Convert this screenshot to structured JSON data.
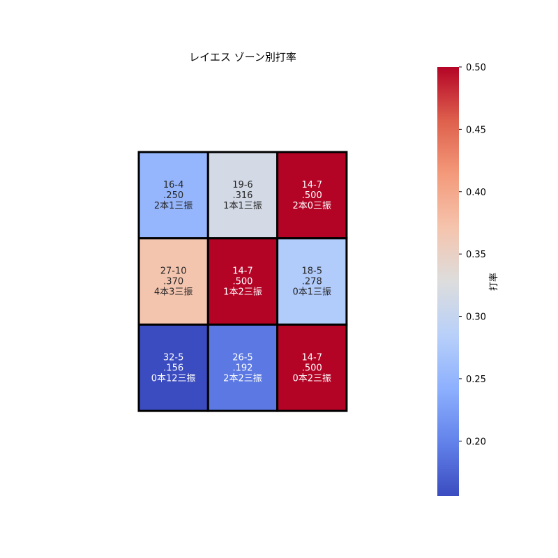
{
  "chart_data": {
    "type": "heatmap",
    "title": "レイエス ゾーン別打率",
    "rows": [
      [
        {
          "record": "16-4",
          "avg_label": ".250",
          "detail": "2本1三振",
          "value": 0.25
        },
        {
          "record": "19-6",
          "avg_label": ".316",
          "detail": "1本1三振",
          "value": 0.316
        },
        {
          "record": "14-7",
          "avg_label": ".500",
          "detail": "2本0三振",
          "value": 0.5
        }
      ],
      [
        {
          "record": "27-10",
          "avg_label": ".370",
          "detail": "4本3三振",
          "value": 0.37
        },
        {
          "record": "14-7",
          "avg_label": ".500",
          "detail": "1本2三振",
          "value": 0.5
        },
        {
          "record": "18-5",
          "avg_label": ".278",
          "detail": "0本1三振",
          "value": 0.278
        }
      ],
      [
        {
          "record": "32-5",
          "avg_label": ".156",
          "detail": "0本12三振",
          "value": 0.156
        },
        {
          "record": "26-5",
          "avg_label": ".192",
          "detail": "2本2三振",
          "value": 0.192
        },
        {
          "record": "14-7",
          "avg_label": ".500",
          "detail": "0本2三振",
          "value": 0.5
        }
      ]
    ],
    "colorbar": {
      "label": "打率",
      "min": 0.156,
      "max": 0.5,
      "ticks": [
        0.2,
        0.25,
        0.3,
        0.35,
        0.4,
        0.45,
        0.5
      ],
      "tick_labels": [
        "0.20",
        "0.25",
        "0.30",
        "0.35",
        "0.40",
        "0.45",
        "0.50"
      ],
      "colormap": "coolwarm"
    },
    "colors": {
      "low": "#3b4cc0",
      "mid": "#dddddd",
      "high": "#b40426",
      "grid_line": "#000000"
    }
  }
}
